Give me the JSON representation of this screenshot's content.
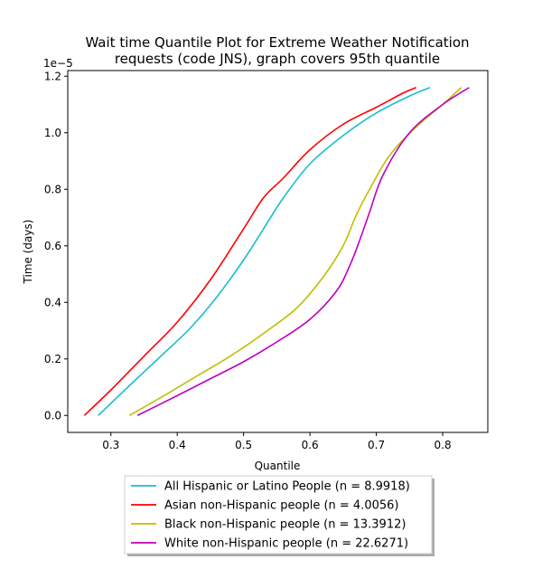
{
  "chart_data": {
    "type": "line",
    "title_line1": "Wait time Quantile Plot for Extreme Weather Notification",
    "title_line2": "requests (code JNS), graph covers 95th quantile",
    "xlabel": "Quantile",
    "ylabel": "Time (days)",
    "y_offset_label": "1e−5",
    "xlim": [
      0.235,
      0.868
    ],
    "ylim": [
      -6e-07,
      1.22e-05
    ],
    "x_ticks": [
      0.3,
      0.4,
      0.5,
      0.6,
      0.7,
      0.8
    ],
    "x_tick_labels": [
      "0.3",
      "0.4",
      "0.5",
      "0.6",
      "0.7",
      "0.8"
    ],
    "y_ticks": [
      0.0,
      2e-06,
      4e-06,
      6e-06,
      8e-06,
      1e-05,
      1.2e-05
    ],
    "y_tick_labels": [
      "0.0",
      "0.2",
      "0.4",
      "0.6",
      "0.8",
      "1.0",
      "1.2"
    ],
    "legend_position": "below",
    "series": [
      {
        "name": "All Hispanic or Latino People (n = 8.9918)",
        "color": "#17becf",
        "x": [
          0.281,
          0.33,
          0.38,
          0.42,
          0.46,
          0.5,
          0.53,
          0.56,
          0.6,
          0.65,
          0.7,
          0.75,
          0.781
        ],
        "y": [
          0.0,
          1.1e-06,
          2.2e-06,
          3.1e-06,
          4.2e-06,
          5.5e-06,
          6.6e-06,
          7.7e-06,
          8.9e-06,
          9.9e-06,
          1.07e-05,
          1.13e-05,
          1.16e-05
        ]
      },
      {
        "name": "Asian non-Hispanic people (n = 4.0056)",
        "color": "#ff0000",
        "x": [
          0.26,
          0.3,
          0.35,
          0.4,
          0.45,
          0.5,
          0.53,
          0.56,
          0.6,
          0.65,
          0.7,
          0.74,
          0.76
        ],
        "y": [
          0.0,
          9e-07,
          2.1e-06,
          3.3e-06,
          4.8e-06,
          6.6e-06,
          7.7e-06,
          8.4e-06,
          9.4e-06,
          1.03e-05,
          1.09e-05,
          1.14e-05,
          1.16e-05
        ]
      },
      {
        "name": "Black non-Hispanic people (n = 13.3912)",
        "color": "#bfbf00",
        "x": [
          0.328,
          0.38,
          0.43,
          0.48,
          0.53,
          0.58,
          0.62,
          0.65,
          0.67,
          0.69,
          0.72,
          0.76,
          0.8,
          0.828
        ],
        "y": [
          0.0,
          7e-07,
          1.4e-06,
          2.1e-06,
          2.9e-06,
          3.8e-06,
          4.9e-06,
          6e-06,
          7.1e-06,
          8e-06,
          9.2e-06,
          1.02e-05,
          1.1e-05,
          1.16e-05
        ]
      },
      {
        "name": "White non-Hispanic people (n = 22.6271)",
        "color": "#bf00bf",
        "x": [
          0.34,
          0.4,
          0.45,
          0.5,
          0.55,
          0.6,
          0.64,
          0.66,
          0.675,
          0.69,
          0.71,
          0.75,
          0.8,
          0.84
        ],
        "y": [
          0.0,
          7e-07,
          1.3e-06,
          1.9e-06,
          2.6e-06,
          3.4e-06,
          4.4e-06,
          5.3e-06,
          6.2e-06,
          7.2e-06,
          8.5e-06,
          1e-05,
          1.1e-05,
          1.16e-05
        ]
      }
    ]
  }
}
